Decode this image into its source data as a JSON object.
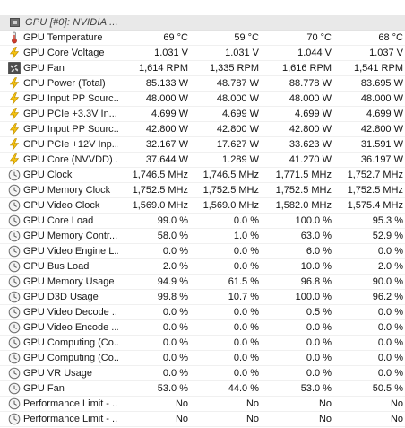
{
  "group": {
    "title": "GPU [#0]: NVIDIA ..."
  },
  "rows": [
    {
      "icon": "thermometer",
      "label": "GPU Temperature",
      "values": [
        "69 °C",
        "59 °C",
        "70 °C",
        "68 °C"
      ]
    },
    {
      "icon": "lightning",
      "label": "GPU Core Voltage",
      "values": [
        "1.031 V",
        "1.031 V",
        "1.044 V",
        "1.037 V"
      ]
    },
    {
      "icon": "fan",
      "label": "GPU Fan",
      "values": [
        "1,614 RPM",
        "1,335 RPM",
        "1,616 RPM",
        "1,541 RPM"
      ]
    },
    {
      "icon": "lightning",
      "label": "GPU Power (Total)",
      "values": [
        "85.133 W",
        "48.787 W",
        "88.778 W",
        "83.695 W"
      ]
    },
    {
      "icon": "lightning",
      "label": "GPU Input PP Sourc...",
      "values": [
        "48.000 W",
        "48.000 W",
        "48.000 W",
        "48.000 W"
      ]
    },
    {
      "icon": "lightning",
      "label": "GPU PCIe +3.3V In...",
      "values": [
        "4.699 W",
        "4.699 W",
        "4.699 W",
        "4.699 W"
      ]
    },
    {
      "icon": "lightning",
      "label": "GPU Input PP Sourc...",
      "values": [
        "42.800 W",
        "42.800 W",
        "42.800 W",
        "42.800 W"
      ]
    },
    {
      "icon": "lightning",
      "label": "GPU PCIe +12V Inp...",
      "values": [
        "32.167 W",
        "17.627 W",
        "33.623 W",
        "31.591 W"
      ]
    },
    {
      "icon": "lightning",
      "label": "GPU Core (NVVDD) ...",
      "values": [
        "37.644 W",
        "1.289 W",
        "41.270 W",
        "36.197 W"
      ]
    },
    {
      "icon": "clock",
      "label": "GPU Clock",
      "values": [
        "1,746.5 MHz",
        "1,746.5 MHz",
        "1,771.5 MHz",
        "1,752.7 MHz"
      ]
    },
    {
      "icon": "clock",
      "label": "GPU Memory Clock",
      "values": [
        "1,752.5 MHz",
        "1,752.5 MHz",
        "1,752.5 MHz",
        "1,752.5 MHz"
      ]
    },
    {
      "icon": "clock",
      "label": "GPU Video Clock",
      "values": [
        "1,569.0 MHz",
        "1,569.0 MHz",
        "1,582.0 MHz",
        "1,575.4 MHz"
      ]
    },
    {
      "icon": "clock",
      "label": "GPU Core Load",
      "values": [
        "99.0 %",
        "0.0 %",
        "100.0 %",
        "95.3 %"
      ]
    },
    {
      "icon": "clock",
      "label": "GPU Memory Contr...",
      "values": [
        "58.0 %",
        "1.0 %",
        "63.0 %",
        "52.9 %"
      ]
    },
    {
      "icon": "clock",
      "label": "GPU Video Engine L...",
      "values": [
        "0.0 %",
        "0.0 %",
        "6.0 %",
        "0.0 %"
      ]
    },
    {
      "icon": "clock",
      "label": "GPU Bus Load",
      "values": [
        "2.0 %",
        "0.0 %",
        "10.0 %",
        "2.0 %"
      ]
    },
    {
      "icon": "clock",
      "label": "GPU Memory Usage",
      "values": [
        "94.9 %",
        "61.5 %",
        "96.8 %",
        "90.0 %"
      ]
    },
    {
      "icon": "clock",
      "label": "GPU D3D Usage",
      "values": [
        "99.8 %",
        "10.7 %",
        "100.0 %",
        "96.2 %"
      ]
    },
    {
      "icon": "clock",
      "label": "GPU Video Decode ...",
      "values": [
        "0.0 %",
        "0.0 %",
        "0.5 %",
        "0.0 %"
      ]
    },
    {
      "icon": "clock",
      "label": "GPU Video Encode ...",
      "values": [
        "0.0 %",
        "0.0 %",
        "0.0 %",
        "0.0 %"
      ]
    },
    {
      "icon": "clock",
      "label": "GPU Computing (Co...",
      "values": [
        "0.0 %",
        "0.0 %",
        "0.0 %",
        "0.0 %"
      ]
    },
    {
      "icon": "clock",
      "label": "GPU Computing (Co...",
      "values": [
        "0.0 %",
        "0.0 %",
        "0.0 %",
        "0.0 %"
      ]
    },
    {
      "icon": "clock",
      "label": "GPU VR Usage",
      "values": [
        "0.0 %",
        "0.0 %",
        "0.0 %",
        "0.0 %"
      ]
    },
    {
      "icon": "clock",
      "label": "GPU Fan",
      "values": [
        "53.0 %",
        "44.0 %",
        "53.0 %",
        "50.5 %"
      ]
    },
    {
      "icon": "clock",
      "label": "Performance Limit - ...",
      "values": [
        "No",
        "No",
        "No",
        "No"
      ]
    },
    {
      "icon": "clock",
      "label": "Performance Limit - ...",
      "values": [
        "No",
        "No",
        "No",
        "No"
      ]
    }
  ]
}
